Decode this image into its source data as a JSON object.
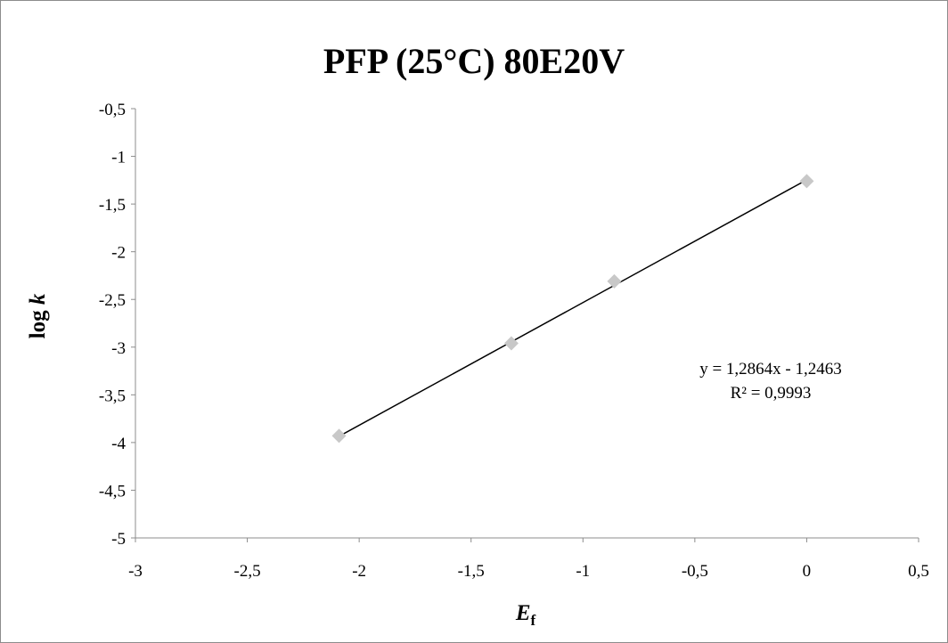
{
  "chart_data": {
    "type": "scatter",
    "title": "PFP (25°C) 80E20V",
    "xlabel": "E",
    "xlabel_subscript": "f",
    "ylabel_prefix": "log ",
    "ylabel_var": "k",
    "xlim": [
      -3,
      0.5
    ],
    "ylim": [
      -5,
      -0.5
    ],
    "xticks": [
      "-3",
      "-2,5",
      "-2",
      "-1,5",
      "-1",
      "-0,5",
      "0",
      "0,5"
    ],
    "yticks": [
      "-0,5",
      "-1",
      "-1,5",
      "-2",
      "-2,5",
      "-3",
      "-3,5",
      "-4",
      "-4,5",
      "-5"
    ],
    "grid": false,
    "series": [
      {
        "x": [
          -2.09,
          -1.32,
          -0.86,
          0.0
        ],
        "y": [
          -3.93,
          -2.96,
          -2.31,
          -1.26
        ],
        "marker": "diamond",
        "color": "#c8c8c8"
      }
    ],
    "trendline": {
      "slope": 1.2864,
      "intercept": -1.2463,
      "x_range": [
        -2.09,
        0.0
      ],
      "color": "#000000",
      "equation": "y = 1,2864x - 1,2463",
      "r_squared": "R² = 0,9993"
    }
  }
}
